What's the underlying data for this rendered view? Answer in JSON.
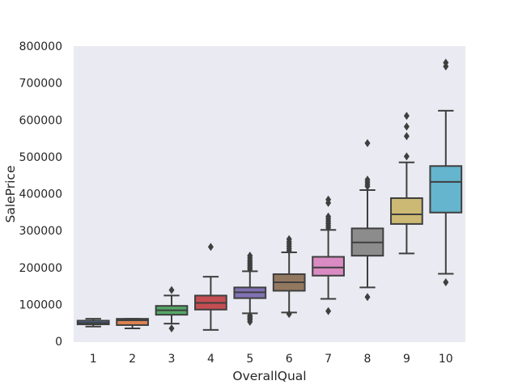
{
  "chart_data": {
    "type": "box",
    "title": "",
    "xlabel": "OverallQual",
    "ylabel": "SalePrice",
    "ylim": [
      0,
      800000
    ],
    "yticks": [
      "0",
      "100000",
      "200000",
      "300000",
      "400000",
      "500000",
      "600000",
      "700000",
      "800000"
    ],
    "ytick_values": [
      0,
      100000,
      200000,
      300000,
      400000,
      500000,
      600000,
      700000,
      800000
    ],
    "categories": [
      "1",
      "2",
      "3",
      "4",
      "5",
      "6",
      "7",
      "8",
      "9",
      "10"
    ],
    "grid": false,
    "background": "#eaeaf2",
    "box_edge_color": "#3f3f3f",
    "series": [
      {
        "name": "1",
        "color": "#4c72b0",
        "whislo": 40000,
        "q1": 46000,
        "med": 50000,
        "q3": 56000,
        "whishi": 61000,
        "fliers": []
      },
      {
        "name": "2",
        "color": "#dd8452",
        "whislo": 35000,
        "q1": 44000,
        "med": 57000,
        "q3": 61000,
        "whishi": 61000,
        "fliers": []
      },
      {
        "name": "3",
        "color": "#55a868",
        "whislo": 48000,
        "q1": 72000,
        "med": 84000,
        "q3": 96000,
        "whishi": 124000,
        "fliers": [
          139000,
          35000
        ]
      },
      {
        "name": "4",
        "color": "#c44e52",
        "whislo": 31000,
        "q1": 86000,
        "med": 104000,
        "q3": 124000,
        "whishi": 175000,
        "fliers": [
          256000
        ]
      },
      {
        "name": "5",
        "color": "#8172b3",
        "whislo": 76000,
        "q1": 117000,
        "med": 133000,
        "q3": 146000,
        "whishi": 190000,
        "fliers": [
          195000,
          200000,
          205000,
          210000,
          215000,
          220000,
          226000,
          232000,
          70000,
          66000,
          62000,
          58000,
          53000
        ]
      },
      {
        "name": "6",
        "color": "#937860",
        "whislo": 78000,
        "q1": 137000,
        "med": 160000,
        "q3": 182000,
        "whishi": 241000,
        "fliers": [
          246000,
          252000,
          258000,
          264000,
          270000,
          277000,
          74000
        ]
      },
      {
        "name": "7",
        "color": "#da8bc3",
        "whislo": 115000,
        "q1": 178000,
        "med": 200000,
        "q3": 229000,
        "whishi": 302000,
        "fliers": [
          308000,
          314000,
          320000,
          326000,
          332000,
          338000,
          375000,
          384000,
          82000
        ]
      },
      {
        "name": "8",
        "color": "#8c8c8c",
        "whislo": 146000,
        "q1": 232000,
        "med": 268000,
        "q3": 306000,
        "whishi": 410000,
        "fliers": [
          420000,
          426000,
          432000,
          438000,
          537000,
          120000
        ]
      },
      {
        "name": "9",
        "color": "#ccb974",
        "whislo": 238000,
        "q1": 318000,
        "med": 344000,
        "q3": 388000,
        "whishi": 485000,
        "fliers": [
          501000,
          556000,
          582000,
          611000
        ]
      },
      {
        "name": "10",
        "color": "#64b5cd",
        "whislo": 183000,
        "q1": 349000,
        "med": 432000,
        "q3": 475000,
        "whishi": 625000,
        "fliers": [
          160000,
          745000,
          755000
        ]
      }
    ]
  }
}
